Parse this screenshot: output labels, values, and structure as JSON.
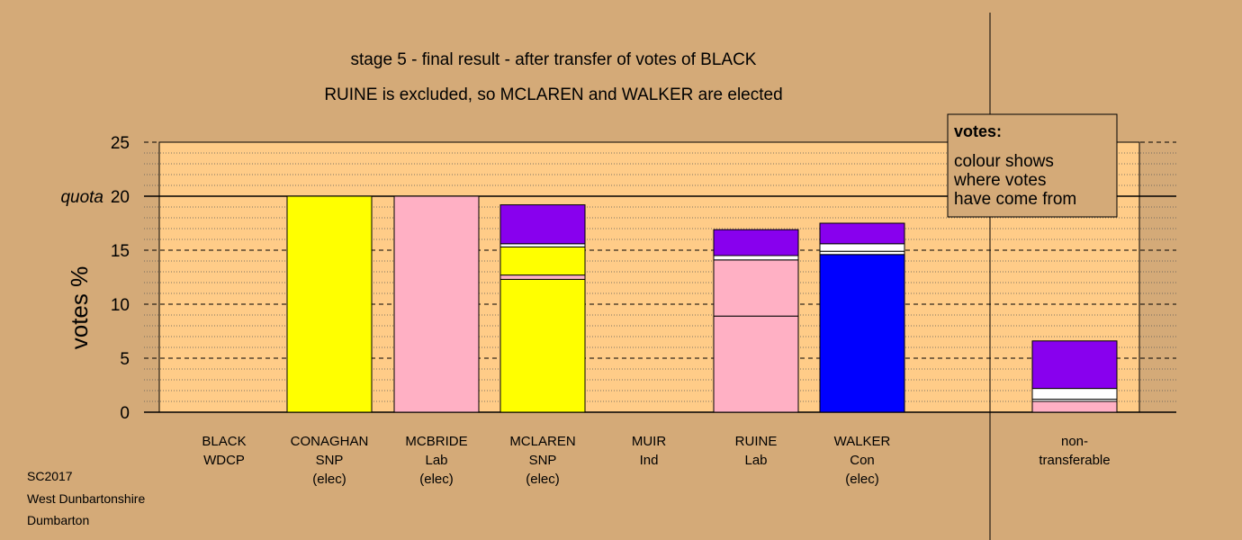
{
  "title": "stage 5 - final result - after transfer of votes of BLACK",
  "subtitle": "RUINE is excluded, so MCLAREN and WALKER are elected",
  "footer": [
    "SC2017",
    "West Dunbartonshire",
    "Dumbarton"
  ],
  "legend_box": {
    "heading": "votes:",
    "lines": [
      "colour shows",
      "where votes",
      "have come from"
    ]
  },
  "colors": {
    "background": "#D4AA78",
    "plot_area": "#FFCC88",
    "SNP": "#FFFF00",
    "Lab": "#FFB0C4",
    "Con": "#0000FF",
    "Other": "#8800EE",
    "Ind": "#FFFFFF"
  },
  "chart_data": {
    "type": "bar",
    "stacked": true,
    "title": "stage 5 - final result - after transfer of votes of BLACK",
    "subtitle": "RUINE is excluded, so MCLAREN and WALKER are elected",
    "ylabel": "votes %",
    "ylim": [
      0,
      25
    ],
    "yticks": [
      0,
      5,
      10,
      15,
      20,
      25
    ],
    "quota": {
      "label": "quota",
      "value": 20
    },
    "grid": "dashed major every 5, dotted minor every 1",
    "categories": [
      {
        "lines": [
          "BLACK",
          "WDCP"
        ],
        "segments": []
      },
      {
        "lines": [
          "CONAGHAN",
          "SNP",
          "(elec)"
        ],
        "segments": [
          {
            "source": "SNP",
            "value": 20.0
          }
        ]
      },
      {
        "lines": [
          "MCBRIDE",
          "Lab",
          "(elec)"
        ],
        "segments": [
          {
            "source": "Lab",
            "value": 20.0
          }
        ]
      },
      {
        "lines": [
          "MCLAREN",
          "SNP",
          "(elec)"
        ],
        "segments": [
          {
            "source": "SNP",
            "value": 12.3
          },
          {
            "source": "Lab",
            "value": 0.4
          },
          {
            "source": "SNP",
            "value": 2.6
          },
          {
            "source": "Ind",
            "value": 0.3
          },
          {
            "source": "Other",
            "value": 3.6
          }
        ]
      },
      {
        "lines": [
          "MUIR",
          "Ind"
        ],
        "segments": []
      },
      {
        "lines": [
          "RUINE",
          "Lab"
        ],
        "segments": [
          {
            "source": "Lab",
            "value": 8.9
          },
          {
            "source": "Lab",
            "value": 5.2
          },
          {
            "source": "Ind",
            "value": 0.4
          },
          {
            "source": "Other",
            "value": 2.4
          }
        ]
      },
      {
        "lines": [
          "WALKER",
          "Con",
          "(elec)"
        ],
        "segments": [
          {
            "source": "Con",
            "value": 14.6
          },
          {
            "source": "Ind",
            "value": 0.3
          },
          {
            "source": "Ind",
            "value": 0.7
          },
          {
            "source": "Other",
            "value": 1.9
          }
        ]
      },
      {
        "lines": [
          "non-",
          "transferable"
        ],
        "segments": [
          {
            "source": "Lab",
            "value": 1.0
          },
          {
            "source": "Ind",
            "value": 0.2
          },
          {
            "source": "Ind",
            "value": 1.0
          },
          {
            "source": "Other",
            "value": 4.4
          }
        ]
      }
    ]
  }
}
